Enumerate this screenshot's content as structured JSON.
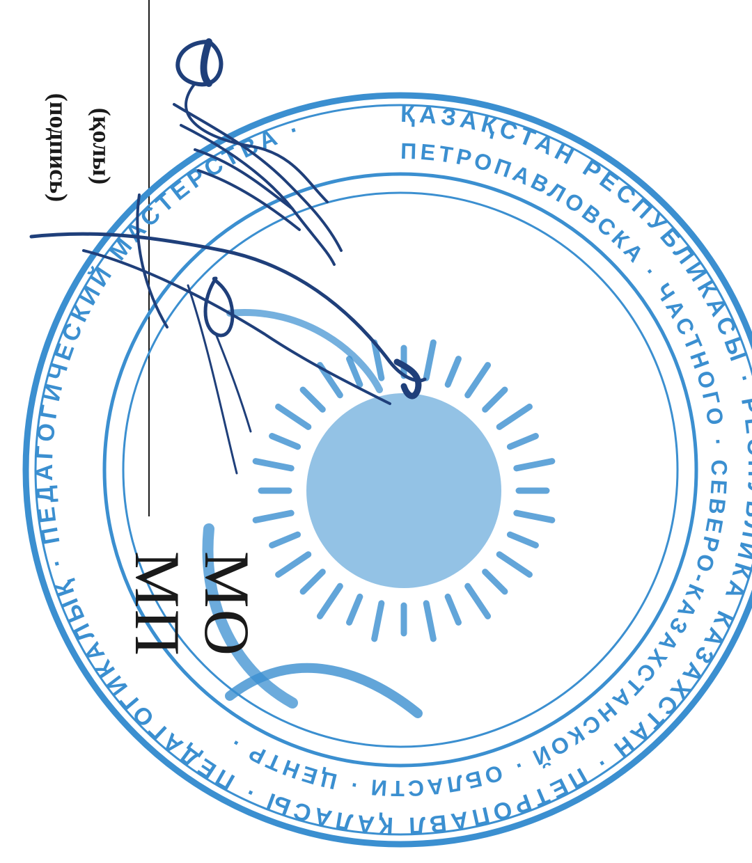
{
  "labels": {
    "podpis": "(подпись)",
    "koly": "(қолы)",
    "mo": "МО",
    "mp": "МП"
  },
  "stamp": {
    "ink_color": "#3b8fd0",
    "outer_text": "ҚАЗАҚСТАН РЕСПУБЛИКАСЫ · РЕСПУБЛИКА КАЗАХСТАН · ПЕТРОПАВЛ ҚАЛАСЫ · ПЕДАГОГИКАЛЫҚ · ПЕДАГОГИЧЕСКИЙ МАСТЕРСТВА · ",
    "inner_text": "ПЕТРОПАВЛОВСКА · ЧАСТНОГО · СЕВЕРО-КАЗАХСТАНСКОЙ · ОБЛАСТИ · ЦЕНТР · ",
    "emblem": "sun-emblem"
  },
  "signature": {
    "ink_color": "#1f3f7a"
  }
}
